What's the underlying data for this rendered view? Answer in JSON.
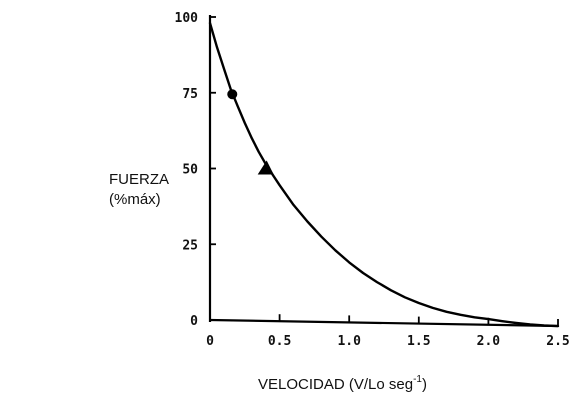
{
  "chart_data": {
    "type": "line",
    "title": "",
    "ylabel_line1": "FUERZA",
    "ylabel_line2": "(%máx)",
    "xlabel_main": "VELOCIDAD (V/Lo seg",
    "xlabel_sup": "-1",
    "xlabel_end": ")",
    "xlim": [
      0,
      2.5
    ],
    "ylim": [
      0,
      100
    ],
    "x_ticks": [
      0,
      0.5,
      1.0,
      1.5,
      2.0,
      2.5
    ],
    "x_tick_labels": [
      "0",
      "0.5",
      "1.0",
      "1.5",
      "2.0",
      "2.5"
    ],
    "y_ticks": [
      0,
      25,
      50,
      75,
      100
    ],
    "y_tick_labels": [
      "0",
      "25",
      "50",
      "75",
      "100"
    ],
    "grid": false,
    "series": [
      {
        "name": "",
        "x": [
          0.0,
          0.05,
          0.1,
          0.15,
          0.2,
          0.25,
          0.3,
          0.35,
          0.4,
          0.45,
          0.5,
          0.6,
          0.7,
          0.8,
          0.9,
          1.0,
          1.1,
          1.2,
          1.3,
          1.4,
          1.5,
          1.6,
          1.7,
          1.8,
          1.9,
          2.0,
          2.1,
          2.2,
          2.3,
          2.4,
          2.5
        ],
        "y": [
          98,
          90,
          83,
          76,
          70.5,
          65,
          60,
          55.5,
          51.5,
          48,
          44.5,
          38,
          32.5,
          27.5,
          23,
          19,
          15.5,
          12.5,
          9.8,
          7.5,
          5.6,
          4.0,
          2.7,
          1.7,
          0.9,
          0.3,
          -0.4,
          -1.0,
          -1.5,
          -1.8,
          -2.0
        ],
        "color": "#000000"
      }
    ],
    "markers": [
      {
        "shape": "circle",
        "x": 0.16,
        "y": 74.5
      },
      {
        "shape": "triangle",
        "x": 0.4,
        "y": 50
      }
    ]
  }
}
